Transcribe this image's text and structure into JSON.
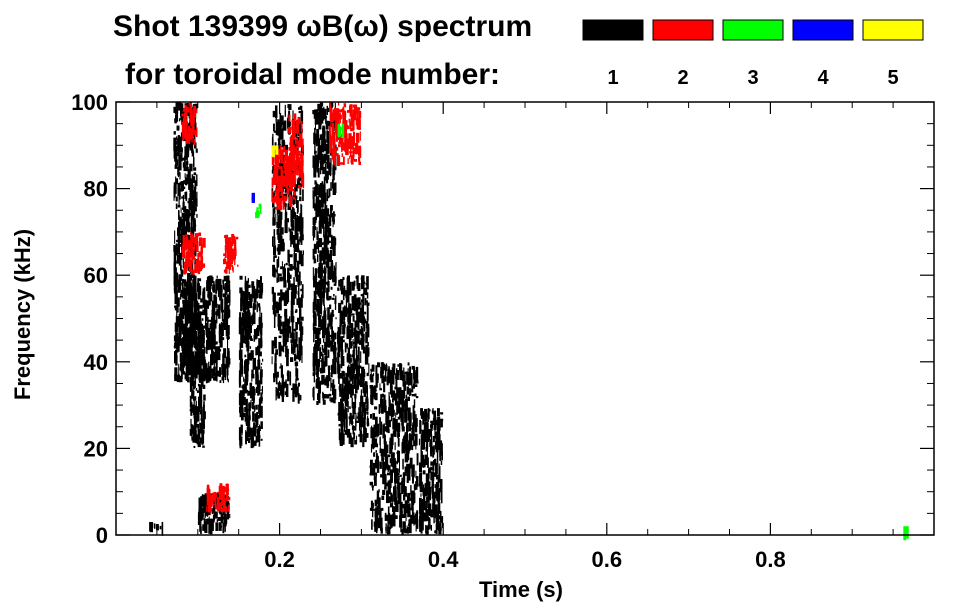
{
  "chart_data": {
    "type": "heatmap",
    "title": "Shot 139399 ωB(ω) spectrum",
    "subtitle": "for toroidal mode number:",
    "xlabel": "Time (s)",
    "ylabel": "Frequency (kHz)",
    "xlim": [
      0,
      1.0
    ],
    "ylim": [
      0,
      100
    ],
    "xticks": [
      0.2,
      0.4,
      0.6,
      0.8
    ],
    "xtick_labels": [
      "0.2",
      "0.4",
      "0.6",
      "0.8"
    ],
    "yticks": [
      0,
      20,
      40,
      60,
      80,
      100
    ],
    "ytick_labels": [
      "0",
      "20",
      "40",
      "60",
      "80",
      "100"
    ],
    "legend_placement": "top-right",
    "legend": [
      {
        "label": "1",
        "color": "#000000"
      },
      {
        "label": "2",
        "color": "#ff0000"
      },
      {
        "label": "3",
        "color": "#00ff00"
      },
      {
        "label": "4",
        "color": "#0000ff"
      },
      {
        "label": "5",
        "color": "#ffff00"
      }
    ],
    "regions": [
      {
        "mode": 1,
        "t": [
          0.07,
          0.1
        ],
        "f": [
          35,
          100
        ]
      },
      {
        "mode": 1,
        "t": [
          0.08,
          0.14
        ],
        "f": [
          35,
          60
        ]
      },
      {
        "mode": 1,
        "t": [
          0.09,
          0.11
        ],
        "f": [
          20,
          45
        ]
      },
      {
        "mode": 1,
        "t": [
          0.1,
          0.14
        ],
        "f": [
          0,
          10
        ]
      },
      {
        "mode": 1,
        "t": [
          0.04,
          0.06
        ],
        "f": [
          1,
          3
        ]
      },
      {
        "mode": 1,
        "t": [
          0.15,
          0.18
        ],
        "f": [
          20,
          60
        ]
      },
      {
        "mode": 1,
        "t": [
          0.19,
          0.23
        ],
        "f": [
          30,
          100
        ]
      },
      {
        "mode": 1,
        "t": [
          0.24,
          0.27
        ],
        "f": [
          30,
          100
        ]
      },
      {
        "mode": 1,
        "t": [
          0.27,
          0.31
        ],
        "f": [
          20,
          60
        ]
      },
      {
        "mode": 1,
        "t": [
          0.31,
          0.37
        ],
        "f": [
          0,
          40
        ]
      },
      {
        "mode": 1,
        "t": [
          0.37,
          0.4
        ],
        "f": [
          0,
          30
        ]
      },
      {
        "mode": 2,
        "t": [
          0.08,
          0.11
        ],
        "f": [
          60,
          70
        ]
      },
      {
        "mode": 2,
        "t": [
          0.13,
          0.15
        ],
        "f": [
          60,
          70
        ]
      },
      {
        "mode": 2,
        "t": [
          0.19,
          0.22
        ],
        "f": [
          75,
          90
        ]
      },
      {
        "mode": 2,
        "t": [
          0.21,
          0.23
        ],
        "f": [
          80,
          98
        ]
      },
      {
        "mode": 2,
        "t": [
          0.26,
          0.3
        ],
        "f": [
          85,
          100
        ]
      },
      {
        "mode": 2,
        "t": [
          0.08,
          0.1
        ],
        "f": [
          90,
          100
        ]
      },
      {
        "mode": 2,
        "t": [
          0.11,
          0.14
        ],
        "f": [
          5,
          12
        ]
      },
      {
        "mode": 3,
        "t": [
          0.17,
          0.18
        ],
        "f": [
          73,
          77
        ]
      },
      {
        "mode": 3,
        "t": [
          0.27,
          0.28
        ],
        "f": [
          92,
          95
        ]
      },
      {
        "mode": 3,
        "t": [
          0.96,
          0.97
        ],
        "f": [
          1,
          2
        ]
      },
      {
        "mode": 4,
        "t": [
          0.165,
          0.17
        ],
        "f": [
          77,
          79
        ]
      },
      {
        "mode": 5,
        "t": [
          0.19,
          0.2
        ],
        "f": [
          88,
          90
        ]
      }
    ]
  }
}
